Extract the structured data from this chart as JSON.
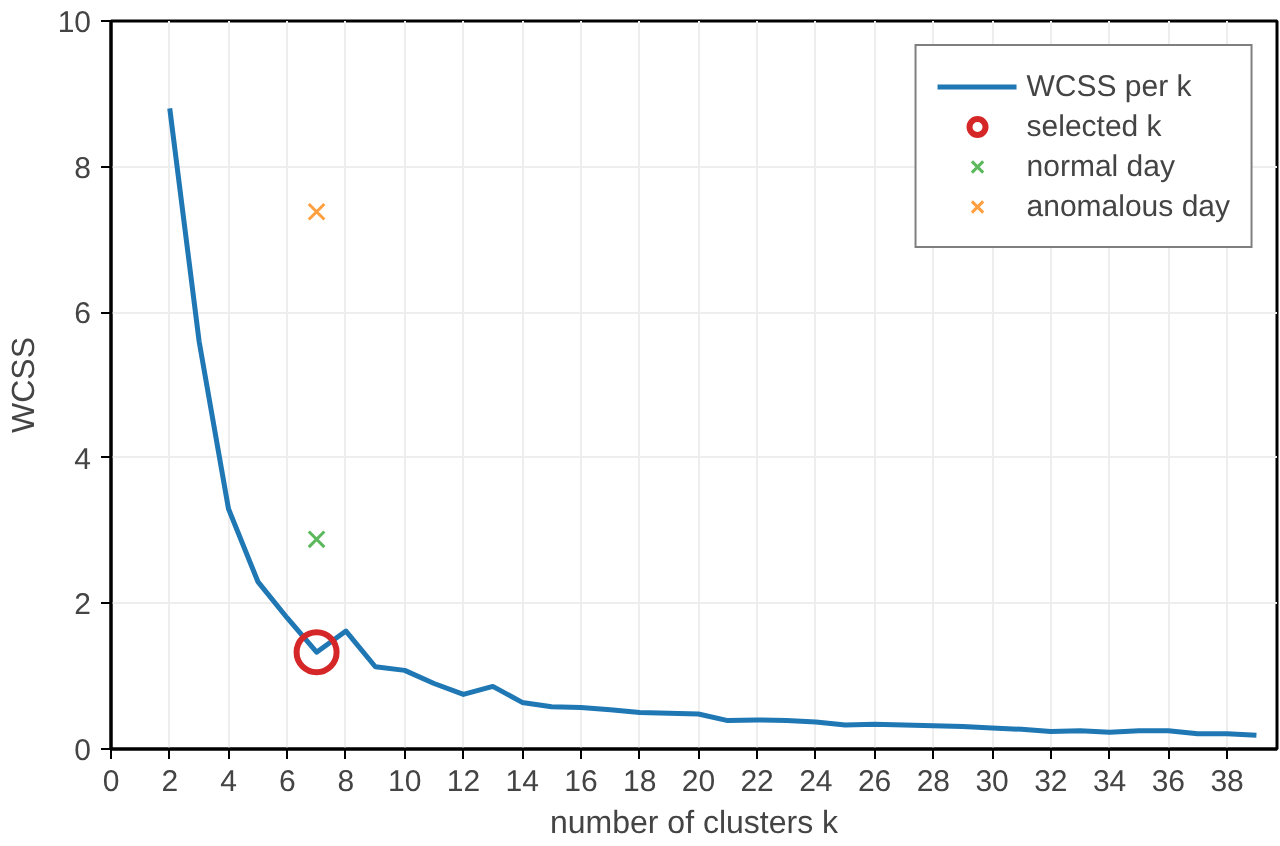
{
  "chart_data": {
    "type": "line",
    "xlabel": "number of clusters k",
    "ylabel": "WCSS",
    "xlim": [
      0,
      39.7
    ],
    "ylim": [
      0,
      10
    ],
    "xticks": [
      0,
      2,
      4,
      6,
      8,
      10,
      12,
      14,
      16,
      18,
      20,
      22,
      24,
      26,
      28,
      30,
      32,
      34,
      36,
      38
    ],
    "yticks": [
      0,
      2,
      4,
      6,
      8,
      10
    ],
    "grid": true,
    "legend": "top right",
    "series": [
      {
        "name": "WCSS per k",
        "color": "#1f77b4",
        "marker": "none",
        "x": [
          2,
          3,
          4,
          5,
          6,
          7,
          8,
          9,
          10,
          11,
          12,
          13,
          14,
          15,
          16,
          17,
          18,
          19,
          20,
          21,
          22,
          23,
          24,
          25,
          26,
          27,
          28,
          29,
          30,
          31,
          32,
          33,
          34,
          35,
          36,
          37,
          38,
          39
        ],
        "values": [
          8.8,
          5.6,
          3.3,
          2.3,
          1.8,
          1.33,
          1.62,
          1.13,
          1.08,
          0.9,
          0.75,
          0.86,
          0.64,
          0.58,
          0.57,
          0.54,
          0.5,
          0.49,
          0.48,
          0.39,
          0.4,
          0.39,
          0.37,
          0.33,
          0.34,
          0.33,
          0.32,
          0.31,
          0.29,
          0.27,
          0.24,
          0.25,
          0.23,
          0.25,
          0.25,
          0.21,
          0.21,
          0.19
        ]
      },
      {
        "name": "selected k",
        "type": "scatter",
        "color": "#d62728",
        "marker": "circle",
        "x": [
          7
        ],
        "values": [
          1.33
        ]
      },
      {
        "name": "normal day",
        "type": "scatter",
        "color": "#5cb85c",
        "marker": "cross",
        "x": [
          7
        ],
        "values": [
          2.88
        ]
      },
      {
        "name": "anomalous day",
        "type": "scatter",
        "color": "#ff9f40",
        "marker": "cross",
        "x": [
          7
        ],
        "values": [
          7.38
        ]
      }
    ]
  }
}
